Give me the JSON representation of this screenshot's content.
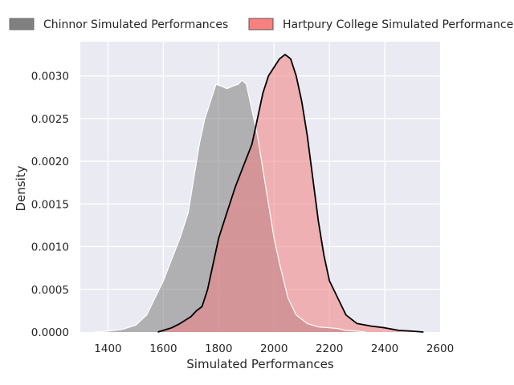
{
  "chart_data": {
    "type": "area",
    "xlabel": "Simulated Performances",
    "ylabel": "Density",
    "xlim": [
      1300,
      2600
    ],
    "ylim": [
      0,
      0.0034
    ],
    "x_ticks": [
      1400,
      1600,
      1800,
      2000,
      2200,
      2400,
      2600
    ],
    "x_tick_labels": [
      "1400",
      "1600",
      "1800",
      "2000",
      "2200",
      "2400",
      "2600"
    ],
    "y_ticks": [
      0,
      0.0005,
      0.001,
      0.0015,
      0.002,
      0.0025,
      0.003
    ],
    "y_tick_labels": [
      "0.0000",
      "0.0005",
      "0.0010",
      "0.0015",
      "0.0020",
      "0.0025",
      "0.0030"
    ],
    "grid": true,
    "legend_position": "top, outside plot, horizontal",
    "series": [
      {
        "name": "Chinnor Simulated Performances",
        "color": "#808080",
        "fill_opacity": 0.55,
        "line_color": "#ffffff",
        "points": [
          [
            1350,
            0
          ],
          [
            1400,
            1e-05
          ],
          [
            1450,
            3e-05
          ],
          [
            1500,
            8e-05
          ],
          [
            1540,
            0.0002
          ],
          [
            1570,
            0.0004
          ],
          [
            1600,
            0.0006
          ],
          [
            1630,
            0.00085
          ],
          [
            1660,
            0.0011
          ],
          [
            1690,
            0.0014
          ],
          [
            1710,
            0.0018
          ],
          [
            1730,
            0.0022
          ],
          [
            1750,
            0.0025
          ],
          [
            1770,
            0.0027
          ],
          [
            1790,
            0.0029
          ],
          [
            1810,
            0.00288
          ],
          [
            1830,
            0.00285
          ],
          [
            1850,
            0.00288
          ],
          [
            1870,
            0.0029
          ],
          [
            1885,
            0.00295
          ],
          [
            1900,
            0.0029
          ],
          [
            1920,
            0.0026
          ],
          [
            1940,
            0.0023
          ],
          [
            1960,
            0.0019
          ],
          [
            1980,
            0.0015
          ],
          [
            2000,
            0.0011
          ],
          [
            2020,
            0.0008
          ],
          [
            2050,
            0.0004
          ],
          [
            2080,
            0.0002
          ],
          [
            2120,
            0.0001
          ],
          [
            2160,
            6e-05
          ],
          [
            2200,
            5e-05
          ],
          [
            2230,
            4e-05
          ],
          [
            2260,
            2e-05
          ],
          [
            2300,
            1e-05
          ],
          [
            2330,
            0
          ]
        ]
      },
      {
        "name": "Hartpury College Simulated Performances",
        "color": "#f08080",
        "fill_opacity": 0.55,
        "line_color": "#000000",
        "points": [
          [
            1580,
            0
          ],
          [
            1600,
            2e-05
          ],
          [
            1630,
            5e-05
          ],
          [
            1660,
            0.0001
          ],
          [
            1700,
            0.00018
          ],
          [
            1720,
            0.00025
          ],
          [
            1740,
            0.0003
          ],
          [
            1760,
            0.0005
          ],
          [
            1780,
            0.0008
          ],
          [
            1800,
            0.0011
          ],
          [
            1830,
            0.0014
          ],
          [
            1860,
            0.0017
          ],
          [
            1890,
            0.00195
          ],
          [
            1920,
            0.0022
          ],
          [
            1940,
            0.0025
          ],
          [
            1960,
            0.0028
          ],
          [
            1980,
            0.003
          ],
          [
            2000,
            0.0031
          ],
          [
            2020,
            0.0032
          ],
          [
            2040,
            0.00325
          ],
          [
            2060,
            0.0032
          ],
          [
            2080,
            0.003
          ],
          [
            2100,
            0.0027
          ],
          [
            2120,
            0.0023
          ],
          [
            2140,
            0.0018
          ],
          [
            2160,
            0.0013
          ],
          [
            2180,
            0.0009
          ],
          [
            2200,
            0.0006
          ],
          [
            2230,
            0.0004
          ],
          [
            2260,
            0.0002
          ],
          [
            2300,
            0.0001
          ],
          [
            2350,
            7e-05
          ],
          [
            2400,
            5e-05
          ],
          [
            2450,
            2e-05
          ],
          [
            2500,
            1e-05
          ],
          [
            2540,
            0
          ]
        ]
      }
    ]
  }
}
